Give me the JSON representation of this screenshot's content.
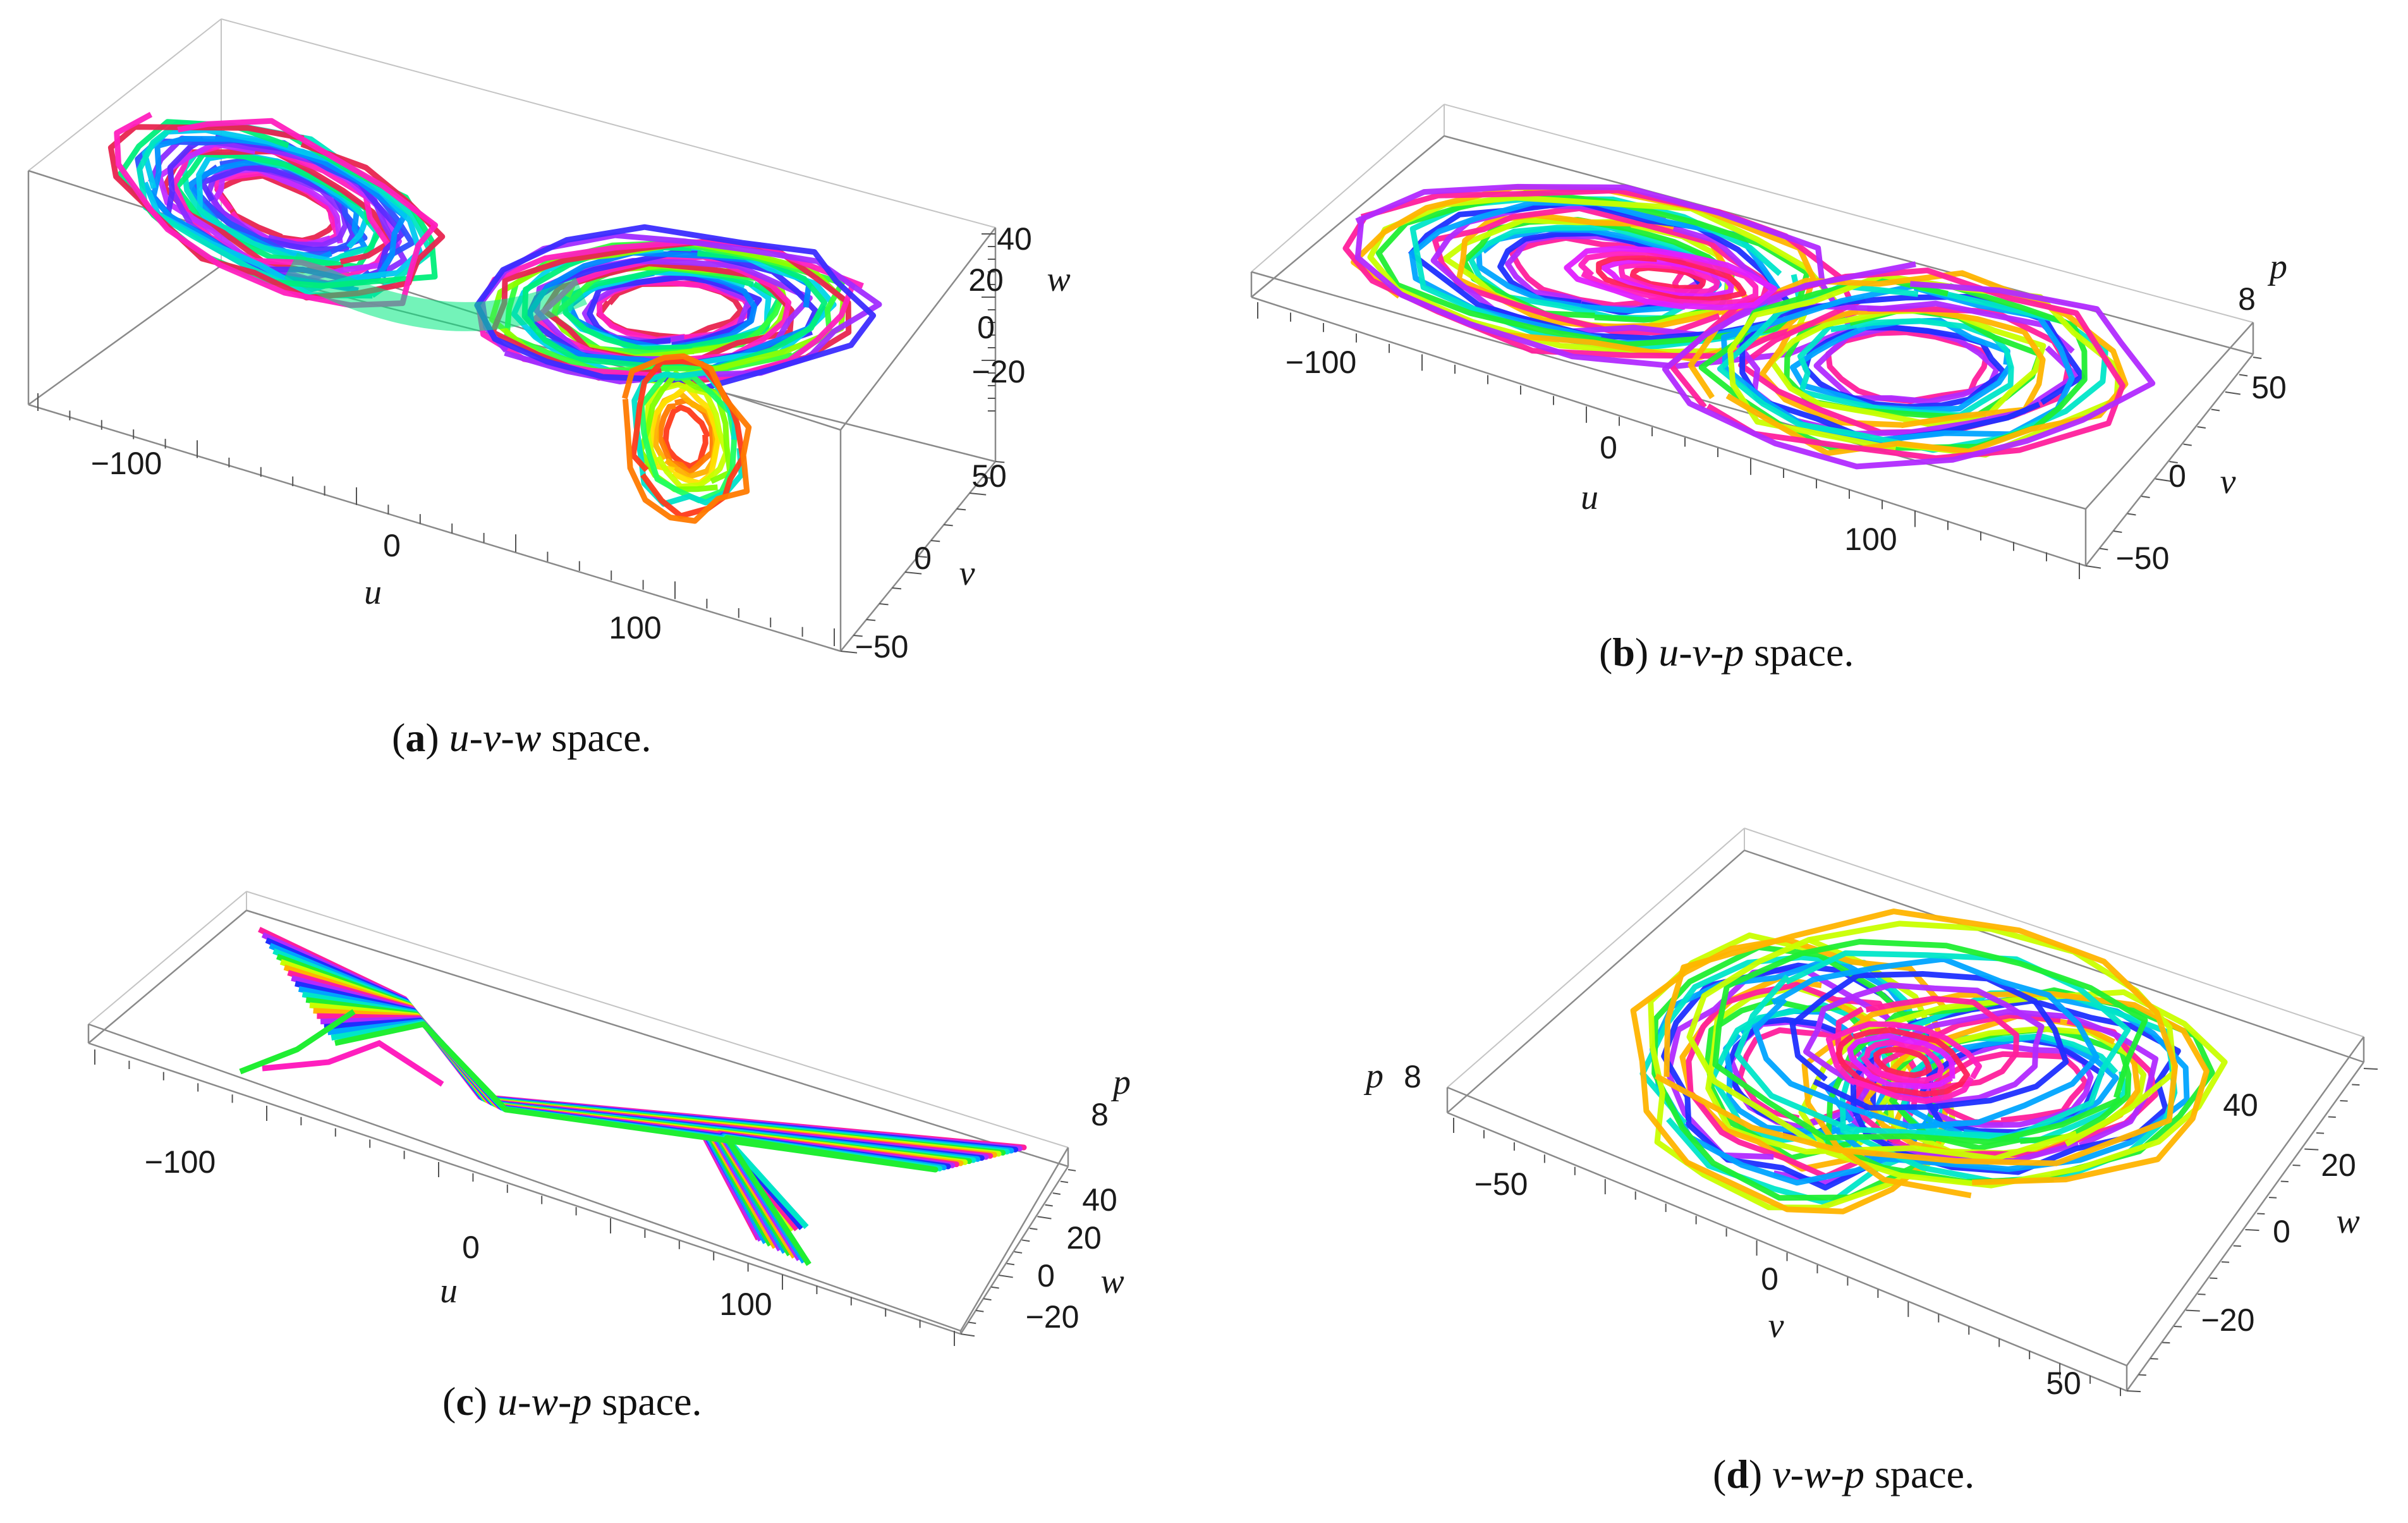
{
  "chart_data": [
    {
      "id": "a",
      "type": "line",
      "projection": "3d",
      "caption": {
        "letter": "a",
        "space": "u-v-w",
        "suffix": "space."
      },
      "axes": {
        "u": {
          "label": "u",
          "ticks": [
            "−100",
            "0",
            "100"
          ]
        },
        "v": {
          "label": "v",
          "ticks": [
            "50",
            "0",
            "−50"
          ]
        },
        "w": {
          "label": "w",
          "ticks": [
            "40",
            "20",
            "0",
            "−20"
          ]
        }
      },
      "series_colors": [
        "#e8244f",
        "#ff1fbe",
        "#a12cff",
        "#3b2cff",
        "#0086ff",
        "#00d6e8",
        "#00ef7a",
        "#8cff00",
        "#ffb000",
        "#ff4a00"
      ]
    },
    {
      "id": "b",
      "type": "line",
      "projection": "3d",
      "caption": {
        "letter": "b",
        "space": "u-v-p",
        "suffix": "space."
      },
      "axes": {
        "u": {
          "label": "u",
          "ticks": [
            "−100",
            "0",
            "100"
          ]
        },
        "v": {
          "label": "v",
          "ticks": [
            "50",
            "0",
            "−50"
          ]
        },
        "p": {
          "label": "p",
          "ticks": [
            "8"
          ]
        }
      },
      "series_colors": [
        "#ff1f9c",
        "#b12aff",
        "#1e2fff",
        "#00a4ff",
        "#00e6c8",
        "#20ee32",
        "#c9ff00",
        "#ffb400"
      ]
    },
    {
      "id": "c",
      "type": "line",
      "projection": "3d",
      "caption": {
        "letter": "c",
        "space": "u-w-p",
        "suffix": "space."
      },
      "axes": {
        "u": {
          "label": "u",
          "ticks": [
            "−100",
            "0",
            "100"
          ]
        },
        "w": {
          "label": "w",
          "ticks": [
            "40",
            "20",
            "0",
            "−20"
          ]
        },
        "p": {
          "label": "p",
          "ticks": [
            "8"
          ]
        }
      },
      "series_colors": [
        "#ff1f9c",
        "#b12aff",
        "#1e2fff",
        "#00a4ff",
        "#00e6c8",
        "#20ee32",
        "#c9ff00",
        "#ffb400"
      ]
    },
    {
      "id": "d",
      "type": "line",
      "projection": "3d",
      "caption": {
        "letter": "d",
        "space": "v-w-p",
        "suffix": "space."
      },
      "axes": {
        "v": {
          "label": "v",
          "ticks": [
            "−50",
            "0",
            "50"
          ]
        },
        "w": {
          "label": "w",
          "ticks": [
            "40",
            "20",
            "0",
            "−20"
          ]
        },
        "p": {
          "label": "p",
          "ticks": [
            "8"
          ]
        }
      },
      "series_colors": [
        "#ff1f9c",
        "#b12aff",
        "#1e2fff",
        "#00a4ff",
        "#00e6c8",
        "#20ee32",
        "#c9ff00",
        "#ffb400"
      ]
    }
  ]
}
